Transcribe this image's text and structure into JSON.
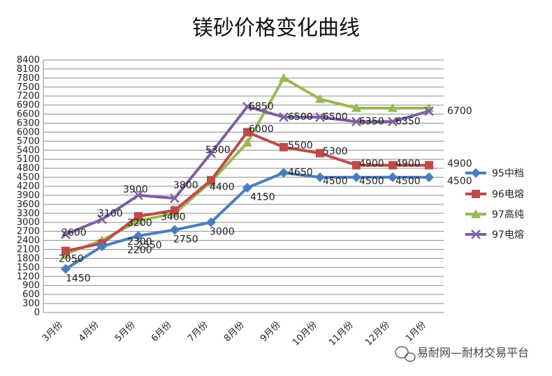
{
  "chart_data": {
    "type": "line",
    "title": "镁砂价格变化曲线",
    "categories": [
      "3月份",
      "4月份",
      "5月份",
      "6月份",
      "7月份",
      "8月份",
      "9月份",
      "10月份",
      "11月份",
      "12月份",
      "1月份"
    ],
    "ylim": [
      0,
      8400
    ],
    "yticks": [
      0,
      300,
      600,
      900,
      1200,
      1500,
      1800,
      2100,
      2400,
      2700,
      3000,
      3300,
      3600,
      3900,
      4200,
      4500,
      4800,
      5100,
      5400,
      5700,
      6000,
      6300,
      6600,
      6900,
      7200,
      7500,
      7800,
      8100,
      8400
    ],
    "grid": true,
    "legend_position": "right",
    "series": [
      {
        "name": "95中档",
        "color": "#4a7ebb",
        "marker": "diamond",
        "values": [
          1450,
          2200,
          2550,
          2750,
          3000,
          4150,
          4650,
          4500,
          4500,
          4500,
          4500
        ],
        "labels": [
          "1450",
          "2200",
          "2550",
          "2750",
          "3000",
          "4150",
          "4650",
          "4500",
          "4500",
          "4500",
          "4500"
        ]
      },
      {
        "name": "96电熔",
        "color": "#be4b48",
        "marker": "square",
        "values": [
          2050,
          2300,
          3200,
          3400,
          4400,
          6000,
          5500,
          5300,
          4900,
          4900,
          4900
        ],
        "labels": [
          "2050",
          "2300",
          "3200",
          "3400",
          "4400",
          "6000",
          "5500",
          "5300",
          "4900",
          "4900",
          "4900"
        ]
      },
      {
        "name": "97高纯",
        "color": "#98b954",
        "marker": "triangle",
        "values": [
          1950,
          2400,
          3050,
          3300,
          4350,
          5650,
          7800,
          7100,
          6800,
          6800,
          6800
        ],
        "labels": []
      },
      {
        "name": "97电熔",
        "color": "#7d60a0",
        "marker": "x",
        "values": [
          2600,
          3100,
          3900,
          3800,
          5300,
          6850,
          6500,
          6500,
          6350,
          6350,
          6700
        ],
        "labels": [
          "2600",
          "3100",
          "3900",
          "3800",
          "5300",
          "6850",
          "6500",
          "6500",
          "6350",
          "6350",
          "6700"
        ]
      }
    ]
  },
  "watermark": {
    "icon": "wechat-icon",
    "text": "易耐网—耐材交易平台"
  }
}
